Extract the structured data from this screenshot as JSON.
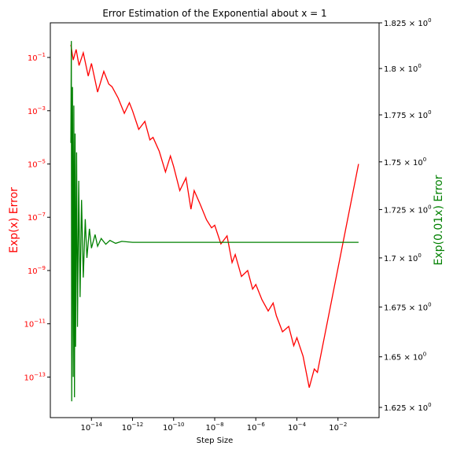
{
  "chart_data": {
    "type": "line",
    "title": "Error Estimation of the Exponential about x = 1",
    "xlabel": "Step Size",
    "ylabel_left": "Exp(x) Error",
    "ylabel_right": "Exp(0.01x) Error",
    "x_scale": "log",
    "y_left_scale": "log",
    "y_right_scale": "log",
    "xlim": [
      1e-16,
      1
    ],
    "ylim_left": [
      3e-15,
      2
    ],
    "ylim_right": [
      1.62,
      1.825
    ],
    "x_ticks": [
      {
        "value": 1e-14,
        "mant": "10",
        "exp": "−14"
      },
      {
        "value": 1e-12,
        "mant": "10",
        "exp": "−12"
      },
      {
        "value": 1e-10,
        "mant": "10",
        "exp": "−10"
      },
      {
        "value": 1e-08,
        "mant": "10",
        "exp": "−8"
      },
      {
        "value": 1e-06,
        "mant": "10",
        "exp": "−6"
      },
      {
        "value": 0.0001,
        "mant": "10",
        "exp": "−4"
      },
      {
        "value": 0.01,
        "mant": "10",
        "exp": "−2"
      }
    ],
    "y_left_ticks": [
      {
        "value": 1e-13,
        "mant": "10",
        "exp": "−13"
      },
      {
        "value": 1e-11,
        "mant": "10",
        "exp": "−11"
      },
      {
        "value": 1e-09,
        "mant": "10",
        "exp": "−9"
      },
      {
        "value": 1e-07,
        "mant": "10",
        "exp": "−7"
      },
      {
        "value": 1e-05,
        "mant": "10",
        "exp": "−5"
      },
      {
        "value": 0.001,
        "mant": "10",
        "exp": "−3"
      },
      {
        "value": 0.1,
        "mant": "10",
        "exp": "−1"
      }
    ],
    "y_right_ticks": [
      {
        "value": 1.625,
        "mant": "1.625 × 10",
        "exp": "0"
      },
      {
        "value": 1.65,
        "mant": "1.65 × 10",
        "exp": "0"
      },
      {
        "value": 1.675,
        "mant": "1.675 × 10",
        "exp": "0"
      },
      {
        "value": 1.7,
        "mant": "1.7 × 10",
        "exp": "0"
      },
      {
        "value": 1.725,
        "mant": "1.725 × 10",
        "exp": "0"
      },
      {
        "value": 1.75,
        "mant": "1.75 × 10",
        "exp": "0"
      },
      {
        "value": 1.775,
        "mant": "1.775 × 10",
        "exp": "0"
      },
      {
        "value": 1.8,
        "mant": "1.8 × 10",
        "exp": "0"
      },
      {
        "value": 1.825,
        "mant": "1.825 × 10",
        "exp": "0"
      }
    ],
    "series": [
      {
        "color": "#ff0000",
        "axis": "left",
        "x": [
          1e-15,
          1.3e-15,
          1.8e-15,
          2.5e-15,
          4e-15,
          7e-15,
          1e-14,
          2e-14,
          4e-14,
          7e-14,
          1e-13,
          2e-13,
          4e-13,
          7e-13,
          1e-12,
          2e-12,
          4e-12,
          7e-12,
          1e-11,
          2e-11,
          4e-11,
          7e-11,
          1e-10,
          2e-10,
          4e-10,
          7e-10,
          1e-09,
          2e-09,
          4e-09,
          7e-09,
          1e-08,
          2e-08,
          4e-08,
          7e-08,
          1e-07,
          2e-07,
          4e-07,
          7e-07,
          1e-06,
          2e-06,
          4e-06,
          7e-06,
          1e-05,
          2e-05,
          4e-05,
          7e-05,
          0.0001,
          0.0002,
          0.0004,
          0.0007,
          0.001,
          0.1
        ],
        "y": [
          0.3,
          0.08,
          0.2,
          0.05,
          0.15,
          0.02,
          0.06,
          0.005,
          0.03,
          0.01,
          0.008,
          0.003,
          0.0008,
          0.002,
          0.001,
          0.0002,
          0.0004,
          8e-05,
          0.0001,
          3e-05,
          5e-06,
          2e-05,
          8e-06,
          1e-06,
          3e-06,
          2e-07,
          1e-06,
          3e-07,
          8e-08,
          4e-08,
          5e-08,
          1e-08,
          2e-08,
          2e-09,
          4e-09,
          6e-10,
          1e-09,
          2e-10,
          3e-10,
          8e-11,
          3e-11,
          6e-11,
          2e-11,
          5e-12,
          8e-12,
          1.5e-12,
          3e-12,
          6e-13,
          4e-14,
          2e-13,
          1.5e-13,
          1e-05
        ]
      },
      {
        "color": "#008000",
        "axis": "right",
        "x": [
          1e-15,
          1.05e-15,
          1.1e-15,
          1.2e-15,
          1.3e-15,
          1.4e-15,
          1.5e-15,
          1.6e-15,
          1.7e-15,
          1.9e-15,
          2.1e-15,
          2.4e-15,
          2.8e-15,
          3.3e-15,
          4e-15,
          5e-15,
          6e-15,
          8e-15,
          1e-14,
          1.5e-14,
          2e-14,
          3e-14,
          5e-14,
          8e-14,
          1.5e-13,
          3e-13,
          1e-12,
          1e-11,
          1e-09,
          1e-06,
          0.001,
          0.1
        ],
        "y": [
          1.76,
          1.815,
          1.628,
          1.79,
          1.64,
          1.78,
          1.63,
          1.765,
          1.655,
          1.755,
          1.665,
          1.74,
          1.68,
          1.73,
          1.69,
          1.72,
          1.7,
          1.715,
          1.705,
          1.712,
          1.706,
          1.71,
          1.707,
          1.709,
          1.7075,
          1.7085,
          1.708,
          1.708,
          1.708,
          1.708,
          1.708,
          1.708
        ]
      }
    ]
  }
}
